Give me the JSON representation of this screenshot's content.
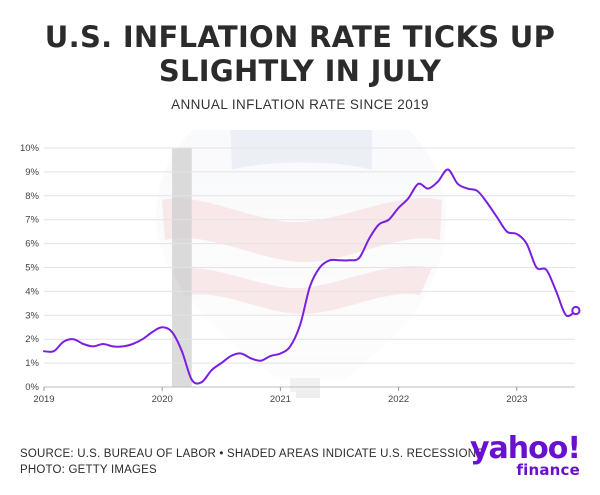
{
  "header": {
    "title_line1": "U.S. INFLATION RATE TICKS UP",
    "title_line2": "SLIGHTLY IN JULY",
    "subtitle": "ANNUAL INFLATION RATE SINCE 2019"
  },
  "footer": {
    "source": "SOURCE: U.S. BUREAU OF LABOR • SHADED AREAS INDICATE U.S. RECESSIONS",
    "photo": "PHOTO: GETTY IMAGES"
  },
  "logo": {
    "brand": "yahoo!",
    "sub": "finance"
  },
  "colors": {
    "line": "#7a1fe0",
    "recession": "#cfcfcf",
    "grid": "#e3e3e3",
    "logo": "#6b0fd1"
  },
  "chart_data": {
    "type": "line",
    "title": "ANNUAL INFLATION RATE SINCE 2019",
    "y_tick_labels": [
      "0%",
      "1%",
      "2%",
      "3%",
      "4%",
      "5%",
      "6%",
      "7%",
      "8%",
      "9%",
      "10%"
    ],
    "x_tick_labels": [
      "2019",
      "2020",
      "2021",
      "2022",
      "2023"
    ],
    "ylim": [
      0,
      10
    ],
    "grid": true,
    "recession_shading": [
      {
        "start": "2020-02",
        "end": "2020-04"
      }
    ],
    "series": [
      {
        "dates": [
          "2019-01",
          "2019-02",
          "2019-03",
          "2019-04",
          "2019-05",
          "2019-06",
          "2019-07",
          "2019-08",
          "2019-09",
          "2019-10",
          "2019-11",
          "2019-12",
          "2020-01",
          "2020-02",
          "2020-03",
          "2020-04",
          "2020-05",
          "2020-06",
          "2020-07",
          "2020-08",
          "2020-09",
          "2020-10",
          "2020-11",
          "2020-12",
          "2021-01",
          "2021-02",
          "2021-03",
          "2021-04",
          "2021-05",
          "2021-06",
          "2021-07",
          "2021-08",
          "2021-09",
          "2021-10",
          "2021-11",
          "2021-12",
          "2022-01",
          "2022-02",
          "2022-03",
          "2022-04",
          "2022-05",
          "2022-06",
          "2022-07",
          "2022-08",
          "2022-09",
          "2022-10",
          "2022-11",
          "2022-12",
          "2023-01",
          "2023-02",
          "2023-03",
          "2023-04",
          "2023-05",
          "2023-06",
          "2023-07"
        ],
        "values": [
          1.5,
          1.5,
          1.9,
          2.0,
          1.8,
          1.7,
          1.8,
          1.7,
          1.7,
          1.8,
          2.0,
          2.3,
          2.5,
          2.3,
          1.5,
          0.3,
          0.2,
          0.7,
          1.0,
          1.3,
          1.4,
          1.2,
          1.1,
          1.3,
          1.4,
          1.7,
          2.6,
          4.2,
          5.0,
          5.3,
          5.3,
          5.3,
          5.4,
          6.2,
          6.8,
          7.0,
          7.5,
          7.9,
          8.5,
          8.3,
          8.6,
          9.1,
          8.5,
          8.3,
          8.2,
          7.7,
          7.1,
          6.5,
          6.4,
          6.0,
          5.0,
          4.9,
          4.0,
          3.0,
          3.2
        ]
      }
    ]
  }
}
